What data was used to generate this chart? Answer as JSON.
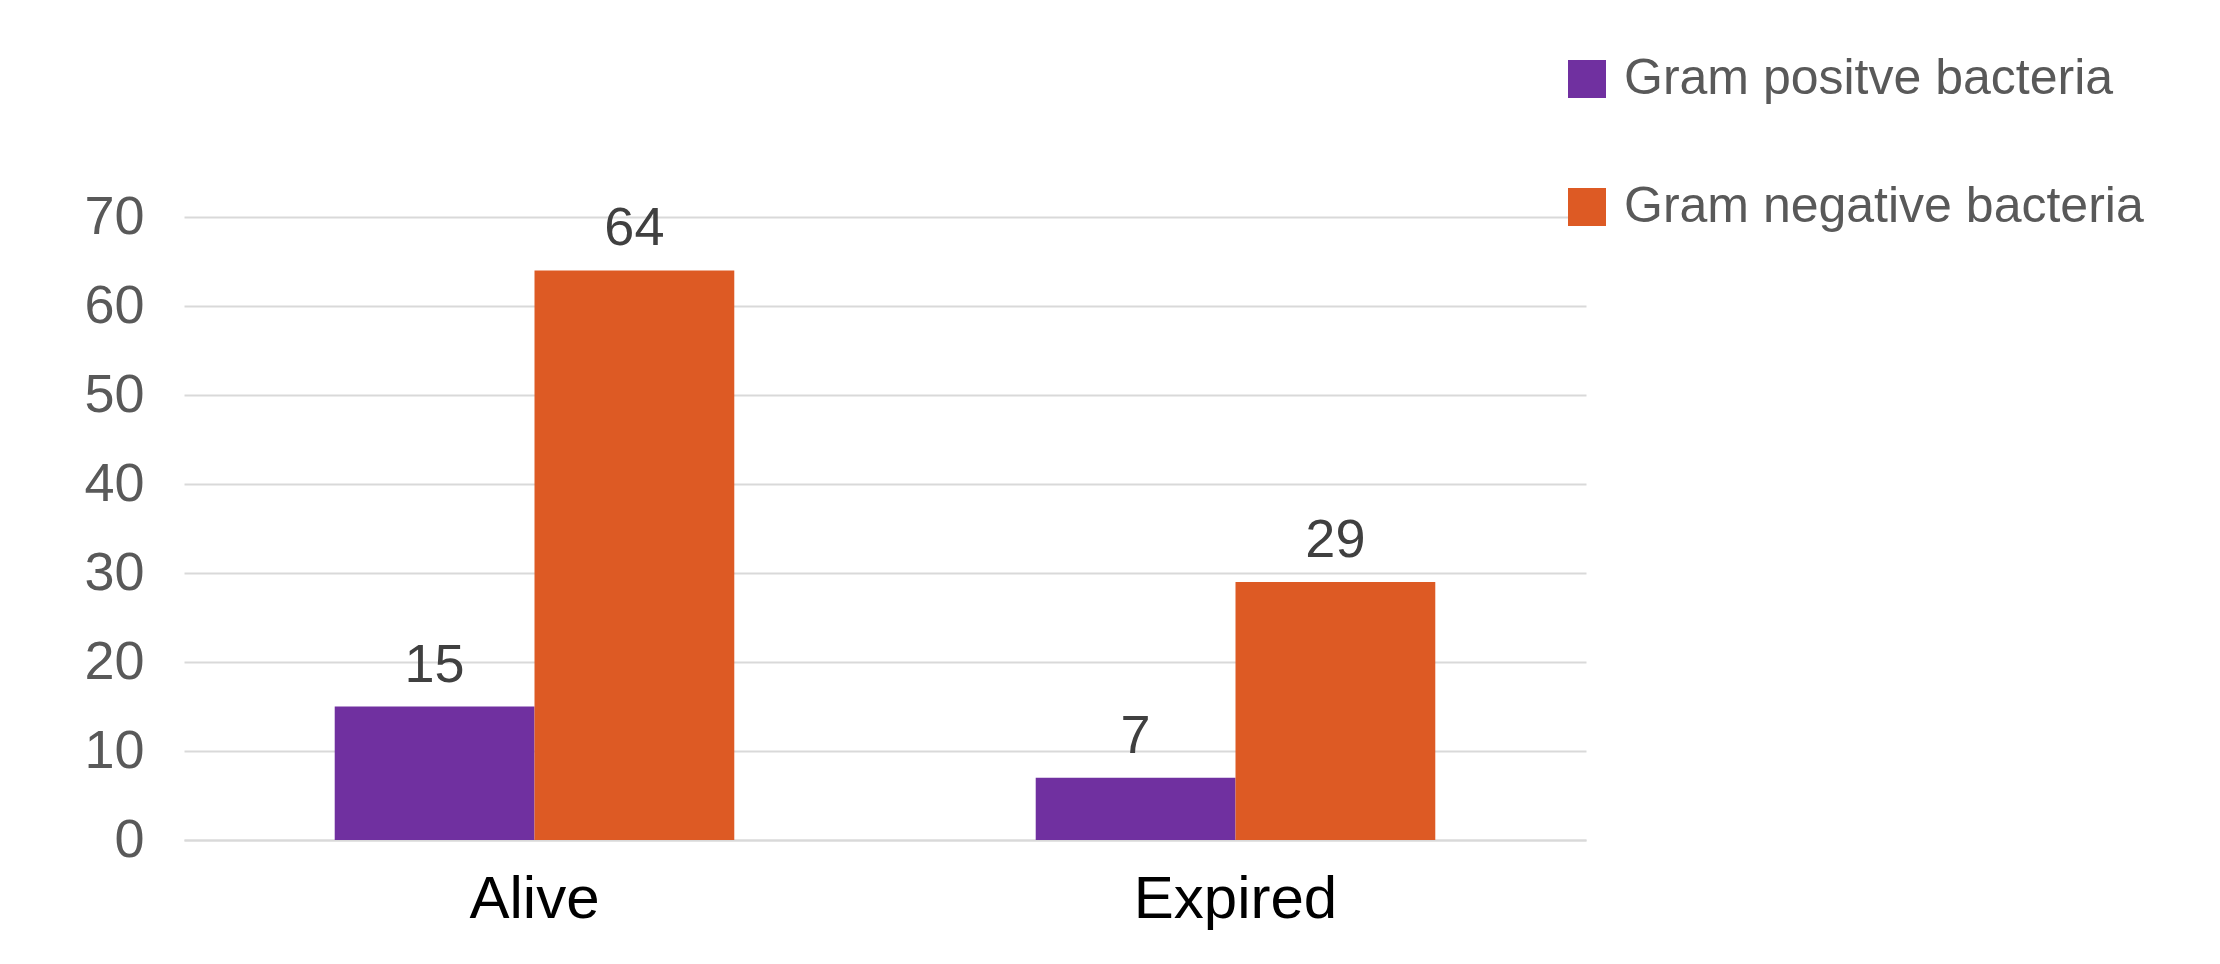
{
  "chart_data": {
    "type": "bar",
    "categories": [
      "Alive",
      "Expired"
    ],
    "series": [
      {
        "name": "Gram positve bacteria",
        "color": "#7030a0",
        "values": [
          15,
          7
        ]
      },
      {
        "name": "Gram negative bacteria",
        "color": "#dd5a24",
        "values": [
          64,
          29
        ]
      }
    ],
    "ylim": [
      0,
      70
    ],
    "yticks": [
      0,
      10,
      20,
      30,
      40,
      50,
      60,
      70
    ],
    "grid": "y",
    "legend": "top right",
    "data_labels": true
  }
}
